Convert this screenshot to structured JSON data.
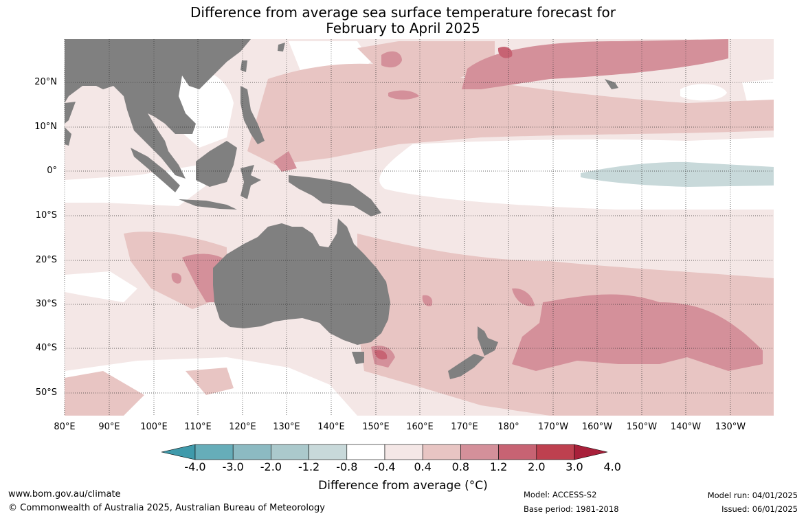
{
  "title": {
    "line1": "Difference from average sea surface temperature forecast for",
    "line2": "February to April 2025"
  },
  "map": {
    "lat_labels": [
      "20°N",
      "10°N",
      "0°",
      "10°S",
      "20°S",
      "30°S",
      "40°S",
      "50°S"
    ],
    "lon_labels": [
      "80°E",
      "90°E",
      "100°E",
      "110°E",
      "120°E",
      "130°E",
      "140°E",
      "150°E",
      "160°E",
      "170°E",
      "180°",
      "170°W",
      "160°W",
      "150°W",
      "140°W",
      "130°W"
    ],
    "land_color": "#808080",
    "ocean_neutral_color": "#ffffff"
  },
  "colorbar": {
    "label": "Difference from average (°C)",
    "ticks": [
      "-4.0",
      "-3.0",
      "-2.0",
      "-1.2",
      "-0.8",
      "-0.4",
      "0.4",
      "0.8",
      "1.2",
      "2.0",
      "3.0",
      "4.0"
    ],
    "colors": [
      "#3f9aab",
      "#66adb9",
      "#8cbac2",
      "#abc9cc",
      "#c8d9da",
      "#ffffff",
      "#f4e7e6",
      "#e8c5c3",
      "#d4909a",
      "#c76373",
      "#be404f",
      "#a8203a"
    ]
  },
  "footer": {
    "website": "www.bom.gov.au/climate",
    "copyright": "© Commonwealth of Australia 2025, Australian Bureau of Meteorology",
    "model": "Model: ACCESS-S2",
    "base_period": "Base period: 1981-2018",
    "model_run": "Model run: 04/01/2025",
    "issued": "Issued: 06/01/2025"
  }
}
